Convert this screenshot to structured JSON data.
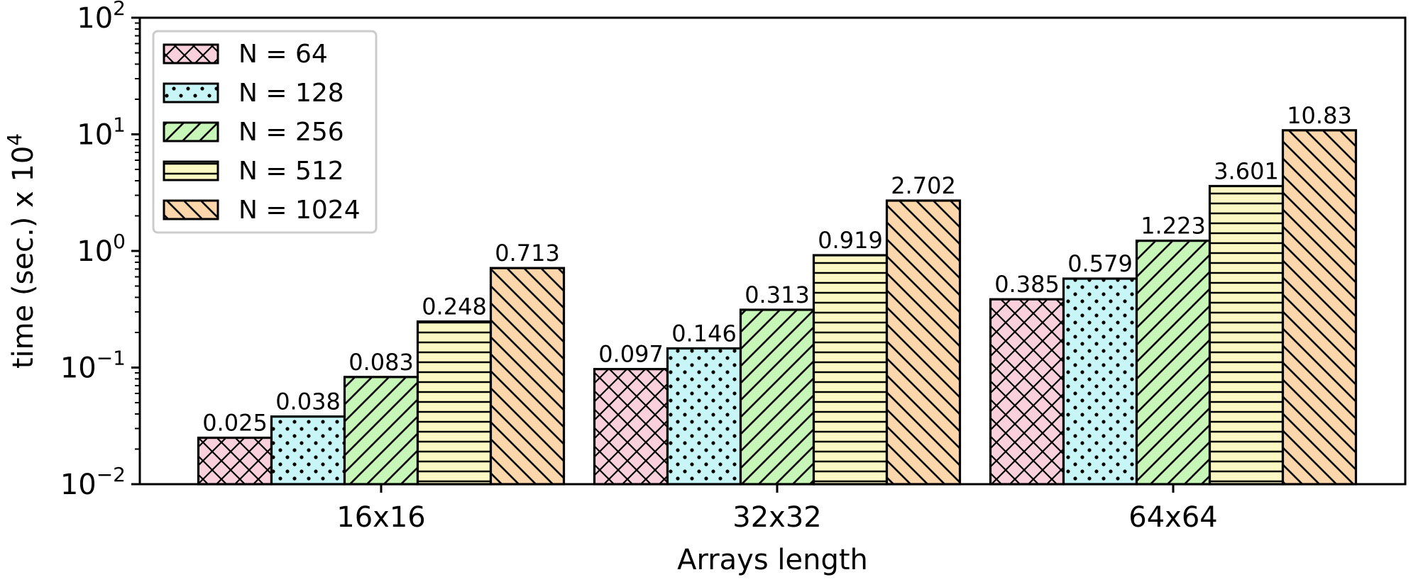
{
  "chart_data": {
    "type": "bar",
    "title": "",
    "xlabel": "Arrays length",
    "ylabel": "time (sec.) x 10",
    "ylabel_exponent": "4",
    "yscale": "log",
    "ylim": [
      0.01,
      100
    ],
    "yticks": [
      {
        "value": 0.01,
        "base": "10",
        "exp": "−2"
      },
      {
        "value": 0.1,
        "base": "10",
        "exp": "−1"
      },
      {
        "value": 1,
        "base": "10",
        "exp": "0"
      },
      {
        "value": 10,
        "base": "10",
        "exp": "1"
      },
      {
        "value": 100,
        "base": "10",
        "exp": "2"
      }
    ],
    "categories": [
      "16x16",
      "32x32",
      "64x64"
    ],
    "legend_position": "top-left",
    "grid": false,
    "series": [
      {
        "name": "N = 64",
        "color": "#f9d0dc",
        "hatch": "cross",
        "values": [
          0.025,
          0.097,
          0.385
        ],
        "labels": [
          "0.025",
          "0.097",
          "0.385"
        ]
      },
      {
        "name": "N = 128",
        "color": "#c8f6f6",
        "hatch": "dots",
        "values": [
          0.038,
          0.146,
          0.579
        ],
        "labels": [
          "0.038",
          "0.146",
          "0.579"
        ]
      },
      {
        "name": "N = 256",
        "color": "#c8f5b8",
        "hatch": "diag",
        "values": [
          0.083,
          0.313,
          1.223
        ],
        "labels": [
          "0.083",
          "0.313",
          "1.223"
        ]
      },
      {
        "name": "N = 512",
        "color": "#fbf8c4",
        "hatch": "horiz",
        "values": [
          0.248,
          0.919,
          3.601
        ],
        "labels": [
          "0.248",
          "0.919",
          "3.601"
        ]
      },
      {
        "name": "N = 1024",
        "color": "#fcd7ac",
        "hatch": "backdiag",
        "values": [
          0.713,
          2.702,
          10.83
        ],
        "labels": [
          "0.713",
          "2.702",
          "10.83"
        ]
      }
    ]
  }
}
